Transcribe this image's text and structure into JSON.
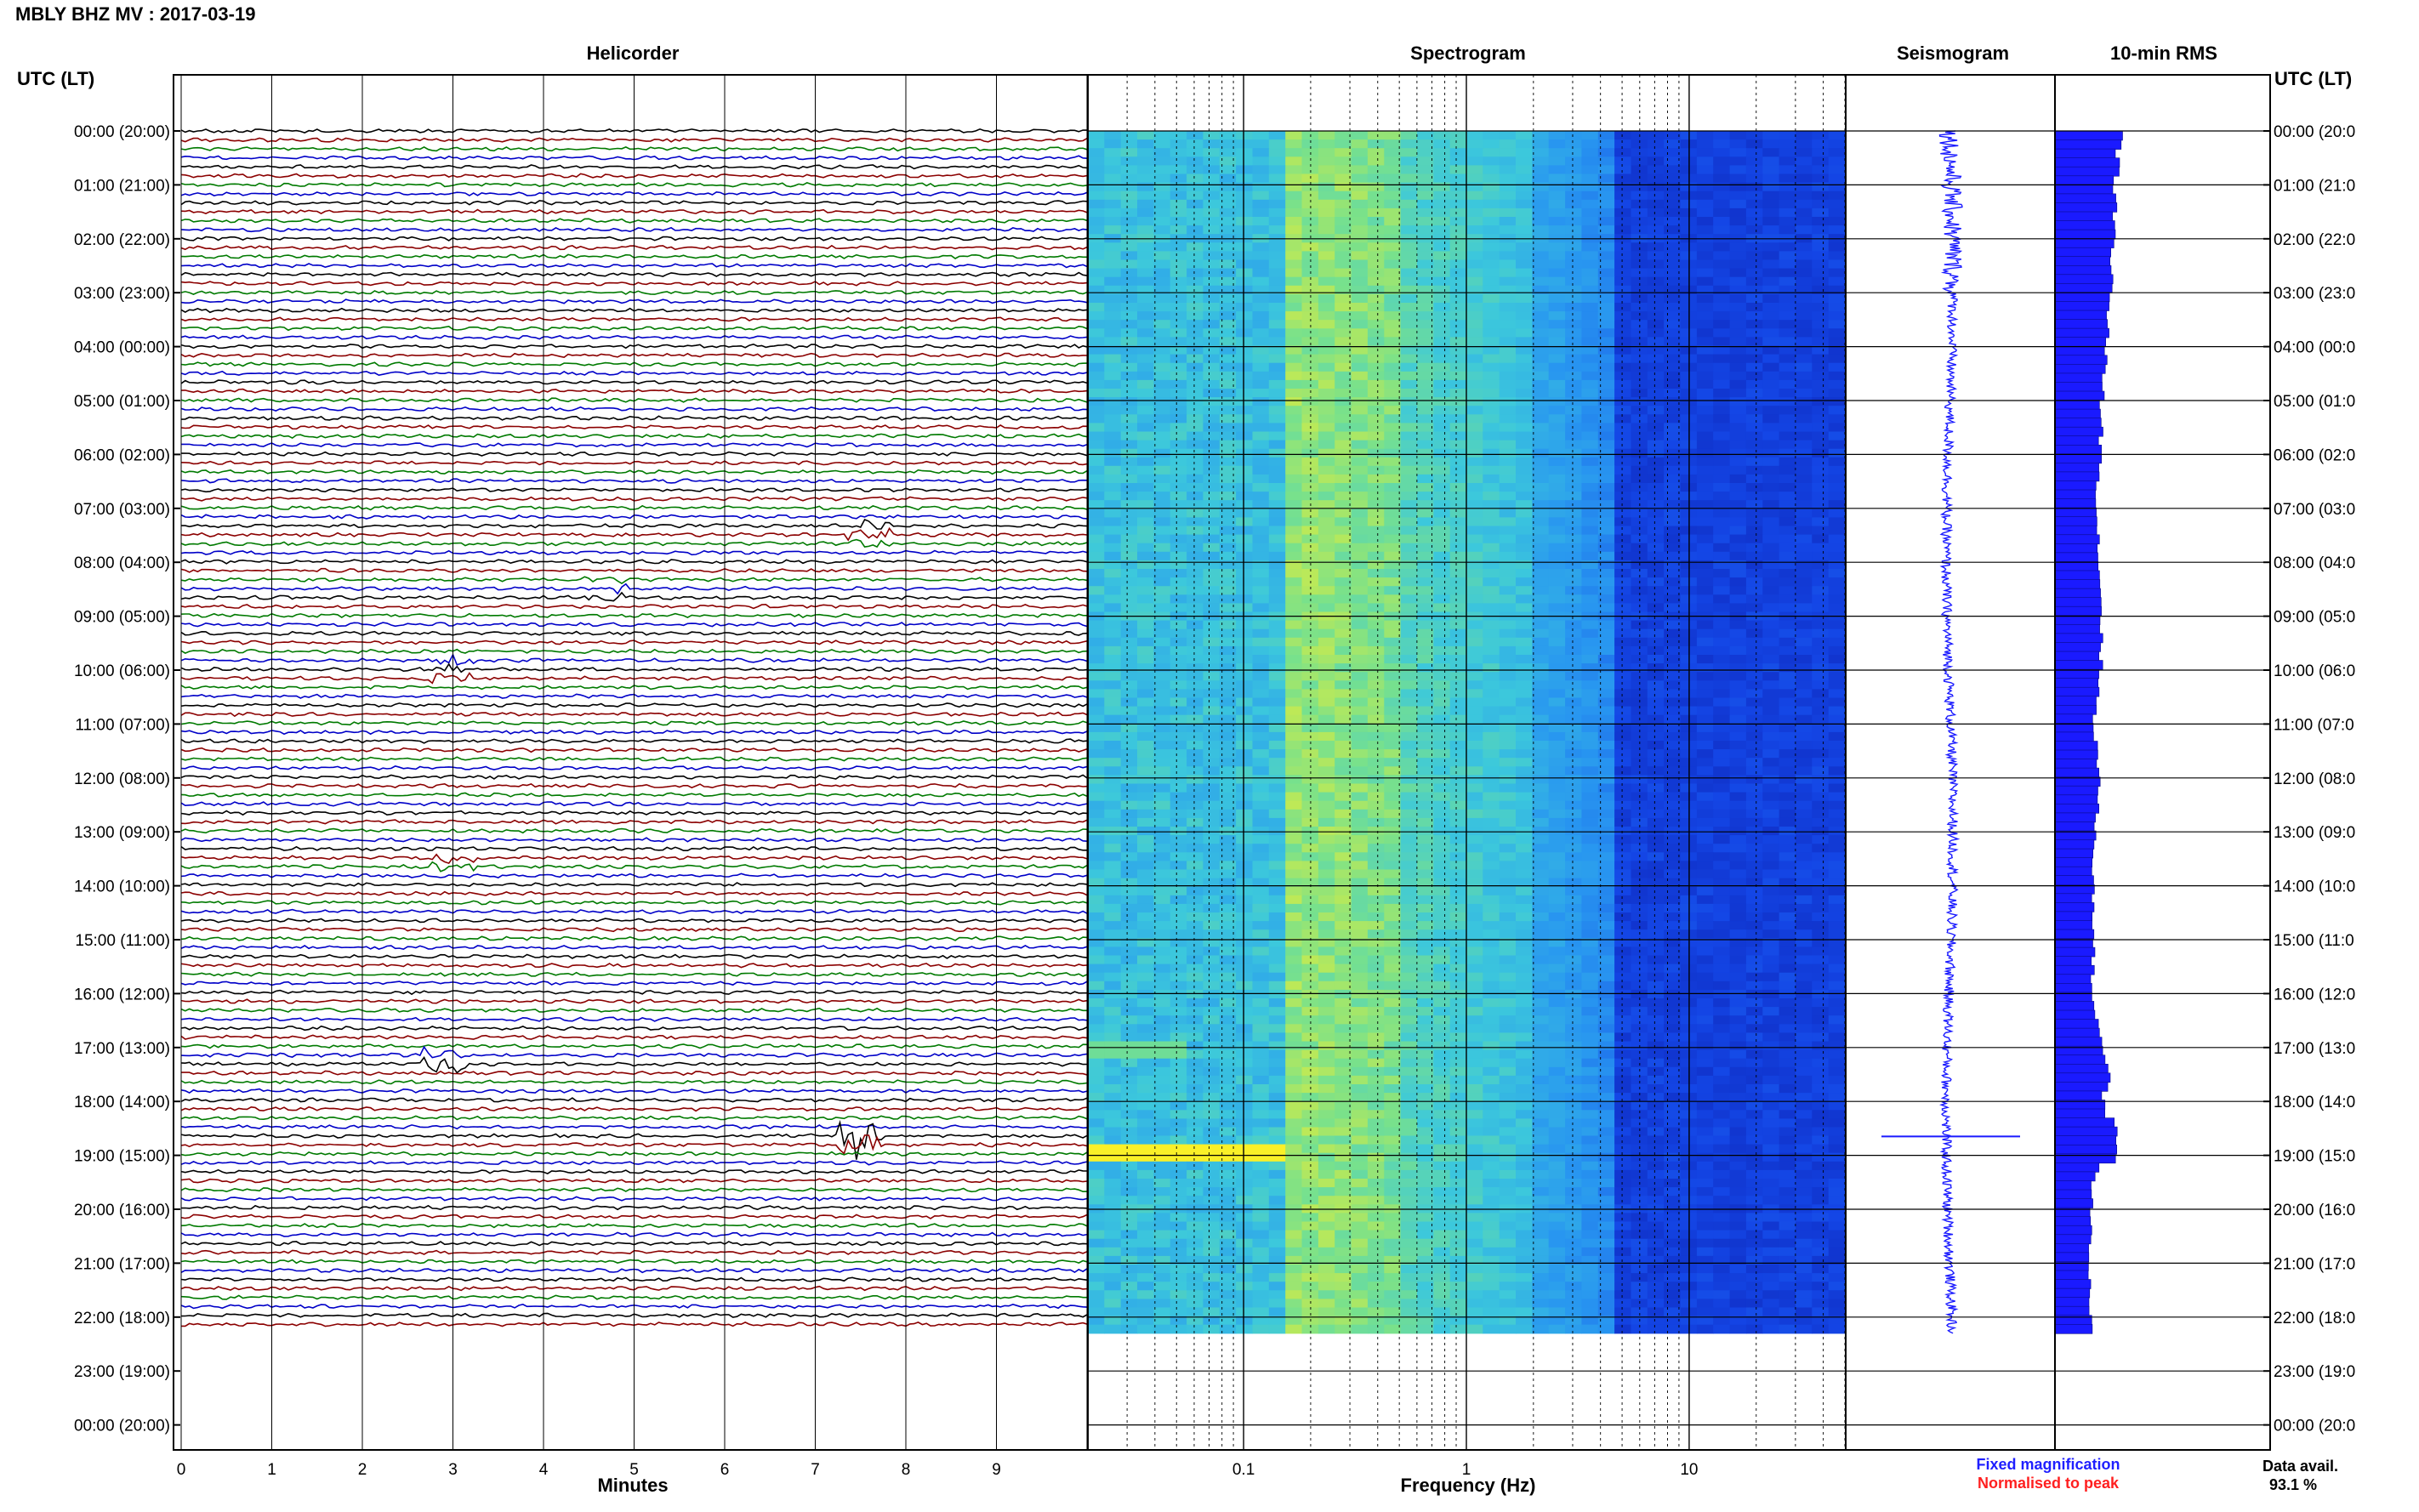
{
  "header": {
    "title": "MBLY BHZ MV : 2017-03-19"
  },
  "panels": {
    "helicorder": "Helicorder",
    "spectrogram": "Spectrogram",
    "seismogram": "Seismogram",
    "rms": "10-min RMS"
  },
  "axis": {
    "left_label": "UTC (LT)",
    "right_label": "UTC (LT)",
    "minutes_label": "Minutes",
    "frequency_label": "Frequency (Hz)"
  },
  "legend": {
    "fixed": "Fixed magnification",
    "normalised": "Normalised to peak",
    "fixed_color": "#1f1fff",
    "normalised_color": "#ff1f1f"
  },
  "data_avail": {
    "label": "Data avail.",
    "value": "93.1 %"
  },
  "colors": {
    "trace_cycle": [
      "#000000",
      "#8b0000",
      "#007a00",
      "#0000c8"
    ],
    "seismogram": "#1a1aff",
    "rms": "#1a1aff",
    "grid": "#000000"
  },
  "chart_data": {
    "type": "heatmap",
    "time_ticks_left": [
      "00:00 (20:00)",
      "01:00 (21:00)",
      "02:00 (22:00)",
      "03:00 (23:00)",
      "04:00 (00:00)",
      "05:00 (01:00)",
      "06:00 (02:00)",
      "07:00 (03:00)",
      "08:00 (04:00)",
      "09:00 (05:00)",
      "10:00 (06:00)",
      "11:00 (07:00)",
      "12:00 (08:00)",
      "13:00 (09:00)",
      "14:00 (10:00)",
      "15:00 (11:00)",
      "16:00 (12:00)",
      "17:00 (13:00)",
      "18:00 (14:00)",
      "19:00 (15:00)",
      "20:00 (16:00)",
      "21:00 (17:00)",
      "22:00 (18:00)",
      "23:00 (19:00)",
      "00:00 (20:00)"
    ],
    "time_ticks_right": [
      "00:00 (20:0",
      "01:00 (21:0",
      "02:00 (22:0",
      "03:00 (23:0",
      "04:00 (00:0",
      "05:00 (01:0",
      "06:00 (02:0",
      "07:00 (03:0",
      "08:00 (04:0",
      "09:00 (05:0",
      "10:00 (06:0",
      "11:00 (07:0",
      "12:00 (08:0",
      "13:00 (09:0",
      "14:00 (10:0",
      "15:00 (11:0",
      "16:00 (12:0",
      "17:00 (13:0",
      "18:00 (14:0",
      "19:00 (15:0",
      "20:00 (16:0",
      "21:00 (17:0",
      "22:00 (18:0",
      "23:00 (19:0",
      "00:00 (20:0"
    ],
    "minute_ticks": [
      0,
      1,
      2,
      3,
      4,
      5,
      6,
      7,
      8,
      9
    ],
    "minutes_range": [
      0,
      10
    ],
    "frequency_ticks": [
      0.1,
      1,
      10
    ],
    "frequency_range": [
      0.02,
      50
    ],
    "frequency_scale": "log",
    "hours_range": [
      0,
      24
    ],
    "data_end_hour": 22.3,
    "helicorder_rows": 134,
    "helicorder_events": [
      {
        "hour": 17.25,
        "minute": 2.9,
        "amp": 2.6
      },
      {
        "hour": 10.0,
        "minute": 3.0,
        "amp": 2.0
      },
      {
        "hour": 7.5,
        "minute": 7.6,
        "amp": 1.6
      },
      {
        "hour": 13.5,
        "minute": 3.0,
        "amp": 1.4
      },
      {
        "hour": 18.75,
        "minute": 7.5,
        "amp": 6.0
      },
      {
        "hour": 8.5,
        "minute": 4.7,
        "amp": 1.4
      }
    ],
    "spectrogram_features": [
      {
        "hour": 19.0,
        "freq_from": 0.02,
        "freq_to": 0.15,
        "level": 1.0,
        "note": "yellow band"
      },
      {
        "hour": 17.0,
        "freq_from": 0.02,
        "freq_to": 0.06,
        "level": 0.8
      }
    ],
    "seismogram_spike_hour": 18.65,
    "rms_profile": [
      {
        "hour": 0.0,
        "value": 1.0
      },
      {
        "hour": 1.0,
        "value": 0.93
      },
      {
        "hour": 2.0,
        "value": 0.9
      },
      {
        "hour": 3.0,
        "value": 0.85
      },
      {
        "hour": 4.0,
        "value": 0.78
      },
      {
        "hour": 5.0,
        "value": 0.72
      },
      {
        "hour": 6.0,
        "value": 0.7
      },
      {
        "hour": 7.0,
        "value": 0.64
      },
      {
        "hour": 8.0,
        "value": 0.68
      },
      {
        "hour": 9.0,
        "value": 0.72
      },
      {
        "hour": 10.0,
        "value": 0.7
      },
      {
        "hour": 11.0,
        "value": 0.6
      },
      {
        "hour": 12.0,
        "value": 0.68
      },
      {
        "hour": 13.0,
        "value": 0.62
      },
      {
        "hour": 14.0,
        "value": 0.58
      },
      {
        "hour": 15.0,
        "value": 0.6
      },
      {
        "hour": 16.0,
        "value": 0.56
      },
      {
        "hour": 17.0,
        "value": 0.74
      },
      {
        "hour": 17.6,
        "value": 0.85
      },
      {
        "hour": 18.0,
        "value": 0.7
      },
      {
        "hour": 18.6,
        "value": 0.95
      },
      {
        "hour": 19.0,
        "value": 1.0
      },
      {
        "hour": 19.3,
        "value": 0.6
      },
      {
        "hour": 20.0,
        "value": 0.56
      },
      {
        "hour": 21.0,
        "value": 0.52
      },
      {
        "hour": 22.0,
        "value": 0.55
      }
    ]
  }
}
